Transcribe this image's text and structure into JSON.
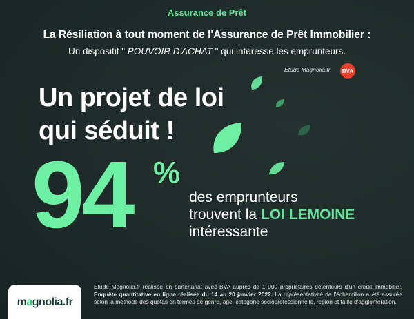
{
  "header": {
    "topic": "Assurance de Prêt",
    "headline": "La Résiliation à tout moment de l'Assurance de Prêt Immobilier :",
    "subline_pre": "Un dispositif \"",
    "subline_em": " POUVOIR D'ACHAT ",
    "subline_post": "\" qui intéresse les emprunteurs.",
    "study_label": "Etude Magnolia.fr",
    "bva_badge": "BVA"
  },
  "main": {
    "claim_line1": "Un projet de loi",
    "claim_line2": "qui séduit !",
    "stat_value": "94",
    "stat_unit": "%",
    "stat_line1": "des emprunteurs",
    "stat_line2_pre": "trouvent la ",
    "stat_line2_highlight": "LOI LEMOINE",
    "stat_line3": "intéressante"
  },
  "footer": {
    "logo_pre": "m",
    "logo_o": "a",
    "logo_mid": "gnolia",
    "logo_fr": ".fr",
    "note_part1": "Etude Magnolia.fr réalisée en partenariat avec BVA  auprès de 1 000 propriétaires détenteurs d'un crédit immobilier. ",
    "note_bold": "Enquête quantitative en ligne réalisée du 14 au 20 janvier 2022.",
    "note_part2": " La représentativité de l'échantillon a été assurée selon la méthode des quotas en termes de genre, âge, catégorie socioprofessionnelle, région et taille d'agglomération."
  },
  "colors": {
    "background": "#1f2d2c",
    "accent_green": "#63e39a",
    "big_number_green": "#6df0a3",
    "bva_red": "#e8402e"
  },
  "icons": [
    "leaf-icon"
  ]
}
